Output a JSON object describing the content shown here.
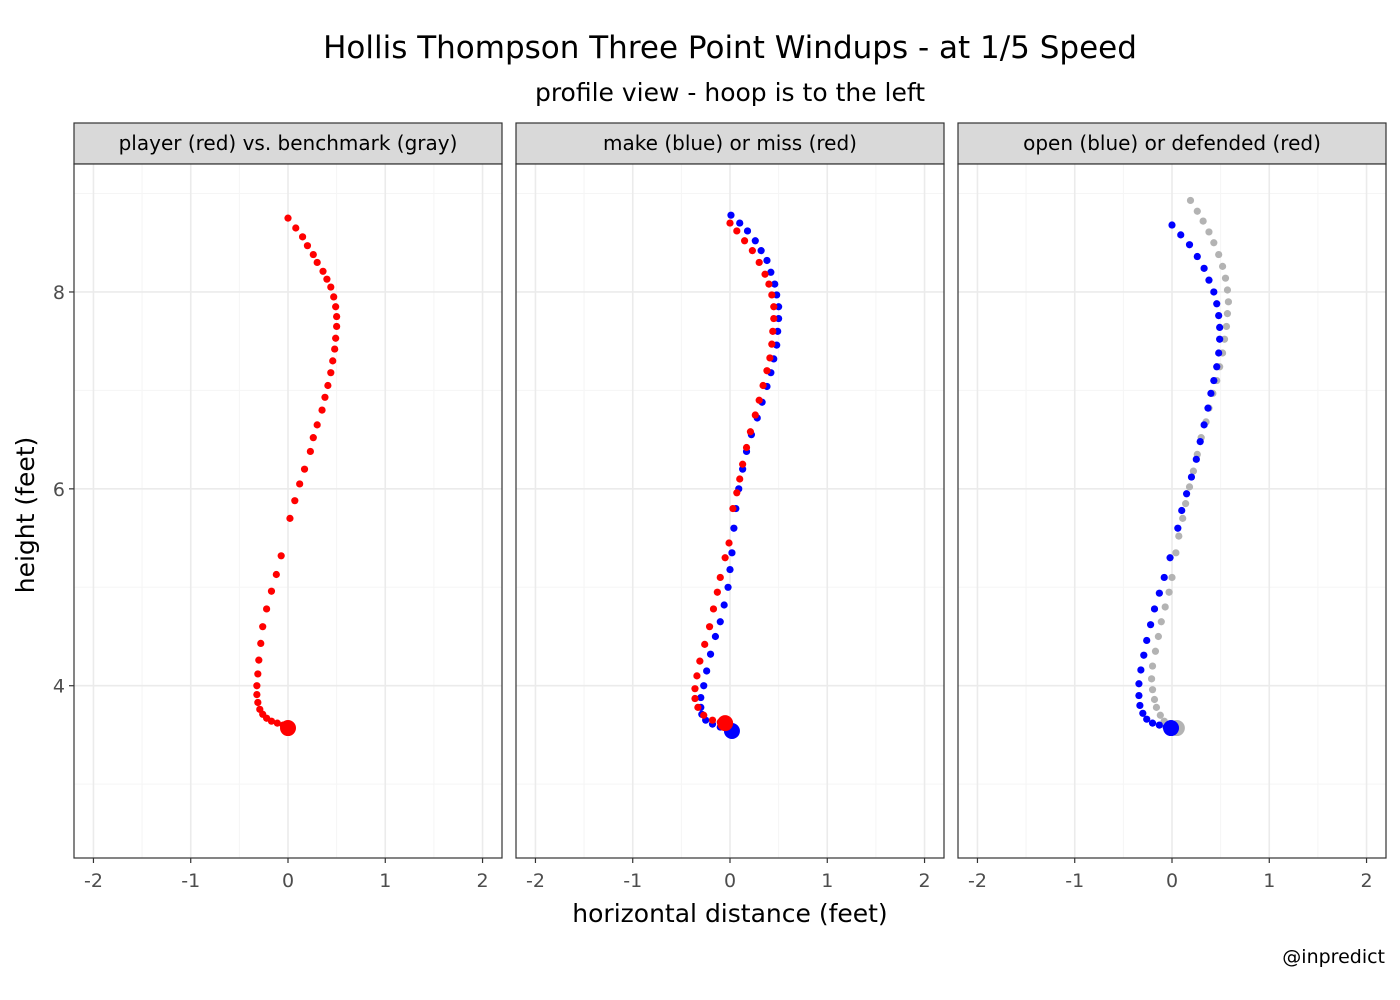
{
  "chart_data": {
    "type": "scatter",
    "title": "Hollis Thompson Three Point Windups - at 1/5 Speed",
    "subtitle": "profile view - hoop is to the left",
    "xlabel": "horizontal distance (feet)",
    "ylabel": "height (feet)",
    "caption": "@inpredict",
    "xlim": [
      -2.2,
      2.2
    ],
    "ylim": [
      2.25,
      9.3
    ],
    "x_ticks": [
      -2,
      -1,
      0,
      1,
      2
    ],
    "x_tick_labels": [
      "-2",
      "-1",
      "0",
      "1",
      "2"
    ],
    "y_ticks": [
      4,
      6,
      8
    ],
    "y_tick_labels": [
      "4",
      "6",
      "8"
    ],
    "grid": true,
    "colors": {
      "red": "#ff0000",
      "blue": "#0000ff",
      "gray": "#b3b3b3",
      "strip_bg": "#d9d9d9",
      "grid_major": "#ebebeb",
      "grid_minor": "#f5f5f5",
      "panel_border": "#333333"
    },
    "panels": [
      {
        "strip": "player (red) vs. benchmark (gray)",
        "series": [
          {
            "color": "red",
            "points": [
              [
                0.0,
                3.6
              ],
              [
                -0.05,
                3.6
              ],
              [
                -0.11,
                3.62
              ],
              [
                -0.17,
                3.64
              ],
              [
                -0.22,
                3.67
              ],
              [
                -0.26,
                3.71
              ],
              [
                -0.29,
                3.76
              ],
              [
                -0.31,
                3.83
              ],
              [
                -0.32,
                3.91
              ],
              [
                -0.32,
                4.0
              ],
              [
                -0.31,
                4.12
              ],
              [
                -0.3,
                4.26
              ],
              [
                -0.28,
                4.43
              ],
              [
                -0.26,
                4.6
              ],
              [
                -0.22,
                4.78
              ],
              [
                -0.17,
                4.96
              ],
              [
                -0.12,
                5.13
              ],
              [
                -0.07,
                5.32
              ],
              [
                0.02,
                5.7
              ],
              [
                0.07,
                5.88
              ],
              [
                0.12,
                6.05
              ],
              [
                0.17,
                6.2
              ],
              [
                0.23,
                6.38
              ],
              [
                0.26,
                6.52
              ],
              [
                0.3,
                6.65
              ],
              [
                0.35,
                6.8
              ],
              [
                0.38,
                6.93
              ],
              [
                0.41,
                7.05
              ],
              [
                0.44,
                7.18
              ],
              [
                0.46,
                7.3
              ],
              [
                0.48,
                7.42
              ],
              [
                0.49,
                7.53
              ],
              [
                0.5,
                7.65
              ],
              [
                0.5,
                7.75
              ],
              [
                0.49,
                7.85
              ],
              [
                0.47,
                7.95
              ],
              [
                0.44,
                8.05
              ],
              [
                0.4,
                8.13
              ],
              [
                0.36,
                8.21
              ],
              [
                0.3,
                8.3
              ],
              [
                0.26,
                8.38
              ],
              [
                0.2,
                8.47
              ],
              [
                0.15,
                8.56
              ],
              [
                0.08,
                8.65
              ],
              [
                0.0,
                8.75
              ]
            ],
            "start": [
              0.0,
              3.57
            ]
          }
        ]
      },
      {
        "strip": "make (blue) or miss (red)",
        "series": [
          {
            "color": "blue",
            "points": [
              [
                0.02,
                3.54
              ],
              [
                -0.03,
                3.56
              ],
              [
                -0.1,
                3.58
              ],
              [
                -0.18,
                3.61
              ],
              [
                -0.25,
                3.65
              ],
              [
                -0.29,
                3.71
              ],
              [
                -0.3,
                3.78
              ],
              [
                -0.3,
                3.88
              ],
              [
                -0.27,
                4.0
              ],
              [
                -0.24,
                4.15
              ],
              [
                -0.2,
                4.32
              ],
              [
                -0.15,
                4.5
              ],
              [
                -0.1,
                4.65
              ],
              [
                -0.06,
                4.82
              ],
              [
                -0.02,
                5.0
              ],
              [
                0.0,
                5.18
              ],
              [
                0.02,
                5.35
              ],
              [
                0.04,
                5.6
              ],
              [
                0.06,
                5.8
              ],
              [
                0.09,
                6.0
              ],
              [
                0.13,
                6.2
              ],
              [
                0.17,
                6.38
              ],
              [
                0.22,
                6.55
              ],
              [
                0.28,
                6.72
              ],
              [
                0.33,
                6.88
              ],
              [
                0.38,
                7.04
              ],
              [
                0.42,
                7.18
              ],
              [
                0.45,
                7.32
              ],
              [
                0.48,
                7.46
              ],
              [
                0.49,
                7.6
              ],
              [
                0.5,
                7.73
              ],
              [
                0.5,
                7.85
              ],
              [
                0.48,
                7.97
              ],
              [
                0.46,
                8.08
              ],
              [
                0.42,
                8.2
              ],
              [
                0.38,
                8.32
              ],
              [
                0.32,
                8.42
              ],
              [
                0.26,
                8.52
              ],
              [
                0.18,
                8.62
              ],
              [
                0.1,
                8.7
              ],
              [
                0.01,
                8.78
              ]
            ],
            "start": [
              0.02,
              3.54
            ]
          },
          {
            "color": "red",
            "points": [
              [
                -0.05,
                3.62
              ],
              [
                -0.1,
                3.63
              ],
              [
                -0.18,
                3.65
              ],
              [
                -0.27,
                3.7
              ],
              [
                -0.33,
                3.78
              ],
              [
                -0.36,
                3.87
              ],
              [
                -0.36,
                3.97
              ],
              [
                -0.34,
                4.1
              ],
              [
                -0.31,
                4.25
              ],
              [
                -0.26,
                4.42
              ],
              [
                -0.21,
                4.6
              ],
              [
                -0.17,
                4.78
              ],
              [
                -0.13,
                4.95
              ],
              [
                -0.1,
                5.1
              ],
              [
                -0.05,
                5.3
              ],
              [
                -0.01,
                5.45
              ],
              [
                0.03,
                5.8
              ],
              [
                0.07,
                5.96
              ],
              [
                0.1,
                6.1
              ],
              [
                0.13,
                6.25
              ],
              [
                0.17,
                6.42
              ],
              [
                0.21,
                6.58
              ],
              [
                0.26,
                6.75
              ],
              [
                0.3,
                6.9
              ],
              [
                0.34,
                7.05
              ],
              [
                0.38,
                7.2
              ],
              [
                0.41,
                7.33
              ],
              [
                0.43,
                7.47
              ],
              [
                0.44,
                7.6
              ],
              [
                0.45,
                7.73
              ],
              [
                0.45,
                7.85
              ],
              [
                0.43,
                7.97
              ],
              [
                0.4,
                8.08
              ],
              [
                0.36,
                8.18
              ],
              [
                0.3,
                8.3
              ],
              [
                0.23,
                8.42
              ],
              [
                0.15,
                8.52
              ],
              [
                0.07,
                8.62
              ],
              [
                0.0,
                8.7
              ]
            ],
            "start": [
              -0.05,
              3.62
            ]
          }
        ]
      },
      {
        "strip": "open (blue) or defended (red)",
        "series": [
          {
            "color": "gray",
            "points": [
              [
                0.05,
                3.57
              ],
              [
                0.01,
                3.58
              ],
              [
                -0.03,
                3.6
              ],
              [
                -0.08,
                3.64
              ],
              [
                -0.12,
                3.7
              ],
              [
                -0.16,
                3.78
              ],
              [
                -0.18,
                3.86
              ],
              [
                -0.2,
                3.96
              ],
              [
                -0.21,
                4.07
              ],
              [
                -0.2,
                4.2
              ],
              [
                -0.17,
                4.35
              ],
              [
                -0.14,
                4.5
              ],
              [
                -0.11,
                4.65
              ],
              [
                -0.07,
                4.8
              ],
              [
                -0.03,
                4.95
              ],
              [
                0.0,
                5.1
              ],
              [
                0.04,
                5.35
              ],
              [
                0.07,
                5.52
              ],
              [
                0.11,
                5.7
              ],
              [
                0.14,
                5.85
              ],
              [
                0.18,
                6.02
              ],
              [
                0.22,
                6.18
              ],
              [
                0.26,
                6.35
              ],
              [
                0.3,
                6.52
              ],
              [
                0.35,
                6.68
              ],
              [
                0.38,
                6.82
              ],
              [
                0.42,
                6.97
              ],
              [
                0.46,
                7.1
              ],
              [
                0.49,
                7.24
              ],
              [
                0.52,
                7.38
              ],
              [
                0.54,
                7.52
              ],
              [
                0.56,
                7.65
              ],
              [
                0.57,
                7.78
              ],
              [
                0.58,
                7.9
              ],
              [
                0.57,
                8.02
              ],
              [
                0.55,
                8.14
              ],
              [
                0.52,
                8.26
              ],
              [
                0.48,
                8.38
              ],
              [
                0.43,
                8.5
              ],
              [
                0.38,
                8.61
              ],
              [
                0.32,
                8.72
              ],
              [
                0.26,
                8.82
              ],
              [
                0.19,
                8.93
              ]
            ],
            "start": [
              0.05,
              3.57
            ]
          },
          {
            "color": "blue",
            "points": [
              [
                -0.01,
                3.57
              ],
              [
                -0.06,
                3.58
              ],
              [
                -0.13,
                3.6
              ],
              [
                -0.2,
                3.62
              ],
              [
                -0.26,
                3.66
              ],
              [
                -0.3,
                3.72
              ],
              [
                -0.33,
                3.8
              ],
              [
                -0.34,
                3.9
              ],
              [
                -0.34,
                4.02
              ],
              [
                -0.32,
                4.16
              ],
              [
                -0.29,
                4.31
              ],
              [
                -0.26,
                4.46
              ],
              [
                -0.22,
                4.62
              ],
              [
                -0.18,
                4.78
              ],
              [
                -0.13,
                4.94
              ],
              [
                -0.08,
                5.1
              ],
              [
                -0.02,
                5.3
              ],
              [
                0.06,
                5.6
              ],
              [
                0.1,
                5.78
              ],
              [
                0.15,
                5.95
              ],
              [
                0.2,
                6.12
              ],
              [
                0.25,
                6.3
              ],
              [
                0.29,
                6.48
              ],
              [
                0.33,
                6.65
              ],
              [
                0.37,
                6.82
              ],
              [
                0.4,
                6.97
              ],
              [
                0.43,
                7.1
              ],
              [
                0.46,
                7.24
              ],
              [
                0.48,
                7.38
              ],
              [
                0.49,
                7.52
              ],
              [
                0.49,
                7.64
              ],
              [
                0.48,
                7.76
              ],
              [
                0.46,
                7.88
              ],
              [
                0.43,
                8.0
              ],
              [
                0.38,
                8.12
              ],
              [
                0.33,
                8.24
              ],
              [
                0.26,
                8.36
              ],
              [
                0.18,
                8.48
              ],
              [
                0.09,
                8.58
              ],
              [
                0.0,
                8.68
              ]
            ],
            "start": [
              -0.01,
              3.57
            ]
          }
        ]
      }
    ]
  }
}
